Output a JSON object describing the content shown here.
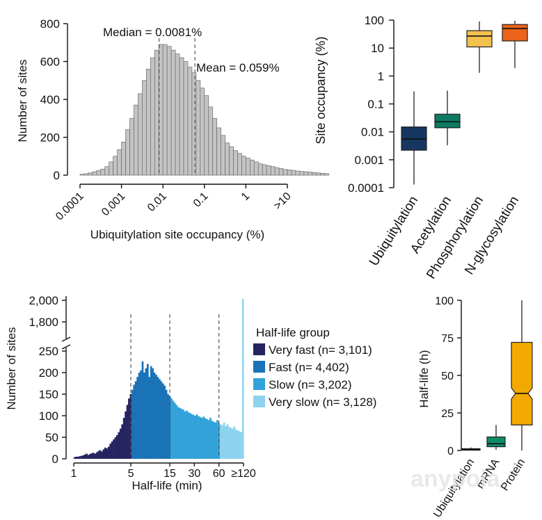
{
  "chart_data": [
    {
      "type": "bar",
      "title": "",
      "xlabel": "Ubiquitylation site occupancy (%)",
      "ylabel": "Number of sites",
      "xscale": "log10",
      "xlim": [
        0.0001,
        10
      ],
      "ylim": [
        0,
        800
      ],
      "xticks": [
        "0.0001",
        "0.001",
        "0.01",
        "0.1",
        "1",
        ">10"
      ],
      "yticks": [
        "0",
        "200",
        "400",
        "600",
        "800"
      ],
      "bin_width_log10": 0.1,
      "bin_start_log10": -4,
      "values": [
        5,
        8,
        12,
        18,
        25,
        32,
        45,
        70,
        100,
        135,
        175,
        240,
        300,
        370,
        430,
        500,
        560,
        620,
        660,
        690,
        690,
        680,
        660,
        640,
        620,
        600,
        570,
        540,
        500,
        460,
        420,
        360,
        300,
        250,
        210,
        170,
        150,
        130,
        115,
        100,
        90,
        80,
        70,
        60,
        55,
        50,
        45,
        40,
        35,
        30,
        28,
        25,
        22,
        20,
        18,
        16,
        14,
        12,
        10,
        8
      ],
      "annotations": [
        {
          "text": "Median = 0.0081%",
          "x": 0.0081
        },
        {
          "text": "Mean = 0.059%",
          "x": 0.059
        }
      ]
    },
    {
      "type": "box",
      "title": "",
      "xlabel": "",
      "ylabel": "Site occupancy (%)",
      "yscale": "log10",
      "ylim": [
        0.0001,
        100
      ],
      "yticks": [
        "0.0001",
        "0.001",
        "0.01",
        "0.1",
        "1",
        "10",
        "100"
      ],
      "categories": [
        "Ubiquitylation",
        "Acetylation",
        "Phosphorylation",
        "N-glycosylation"
      ],
      "colors": [
        "#173660",
        "#0e7a63",
        "#f2c14e",
        "#ec6319"
      ],
      "boxes": [
        {
          "min": 0.00013,
          "q1": 0.0022,
          "median": 0.0055,
          "q3": 0.015,
          "max": 0.28
        },
        {
          "min": 0.0033,
          "q1": 0.014,
          "median": 0.023,
          "q3": 0.043,
          "max": 0.3
        },
        {
          "min": 1.3,
          "q1": 11,
          "median": 27,
          "q3": 42,
          "max": 90
        },
        {
          "min": 1.9,
          "q1": 18,
          "median": 50,
          "q3": 70,
          "max": 95
        }
      ]
    },
    {
      "type": "bar",
      "title": "",
      "xlabel": "Half-life (min)",
      "ylabel": "Number of sites",
      "xscale": "log",
      "xlim": [
        1,
        120
      ],
      "xticks": [
        "1",
        "5",
        "15",
        "30",
        "60",
        "≥120"
      ],
      "yticks_lower": [
        "0",
        "50",
        "100",
        "150",
        "200",
        "250"
      ],
      "yticks_upper": [
        "1,800",
        "2,000"
      ],
      "ylim_lower": [
        0,
        260
      ],
      "ylim_upper": [
        1700,
        2000
      ],
      "dashed_lines_at": [
        5,
        15,
        60
      ],
      "legend_title": "Half-life group",
      "legend": [
        {
          "label": "Very fast (n= 3,101)",
          "color": "#262460",
          "from": 1,
          "to": 5
        },
        {
          "label": "Fast (n= 4,402)",
          "color": "#1b73b8",
          "from": 5,
          "to": 15
        },
        {
          "label": "Slow (n= 3,202)",
          "color": "#33a2da",
          "from": 15,
          "to": 60
        },
        {
          "label": "Very slow (n= 3,128)",
          "color": "#8dd3ef",
          "from": 60,
          "to": 120
        }
      ],
      "bins": 100,
      "values": [
        4,
        5,
        5,
        6,
        7,
        8,
        10,
        12,
        9,
        11,
        13,
        14,
        12,
        15,
        18,
        20,
        17,
        22,
        26,
        24,
        28,
        35,
        40,
        45,
        50,
        55,
        62,
        70,
        80,
        95,
        110,
        125,
        140,
        150,
        160,
        172,
        180,
        190,
        200,
        205,
        226,
        200,
        210,
        220,
        190,
        215,
        210,
        200,
        195,
        190,
        185,
        180,
        175,
        170,
        160,
        150,
        145,
        140,
        135,
        130,
        125,
        120,
        118,
        116,
        114,
        110,
        112,
        108,
        106,
        104,
        102,
        100,
        103,
        99,
        97,
        95,
        98,
        94,
        92,
        90,
        95,
        88,
        86,
        84,
        90,
        82,
        80,
        78,
        84,
        76,
        80,
        74,
        72,
        70,
        75,
        68,
        66,
        64,
        62,
        60
      ],
      "last_bin_value": 2000
    },
    {
      "type": "box",
      "title": "",
      "xlabel": "",
      "ylabel": "Half-life (h)",
      "ylim": [
        0,
        100
      ],
      "yticks": [
        "0",
        "25",
        "50",
        "75",
        "100"
      ],
      "categories": [
        "Ubiquitylation",
        "mRNA",
        "Protein"
      ],
      "colors": [
        "#5a1a1a",
        "#0e8a68",
        "#f2a900"
      ],
      "boxes": [
        {
          "min": 0,
          "q1": 0.2,
          "median": 0.6,
          "q3": 1.2,
          "max": 2
        },
        {
          "min": 0.5,
          "q1": 2.5,
          "median": 4.5,
          "q3": 9,
          "max": 17
        },
        {
          "min": 0,
          "q1": 17,
          "median": 38,
          "q3": 72,
          "max": 100
        }
      ]
    }
  ],
  "watermark": "anypoia"
}
